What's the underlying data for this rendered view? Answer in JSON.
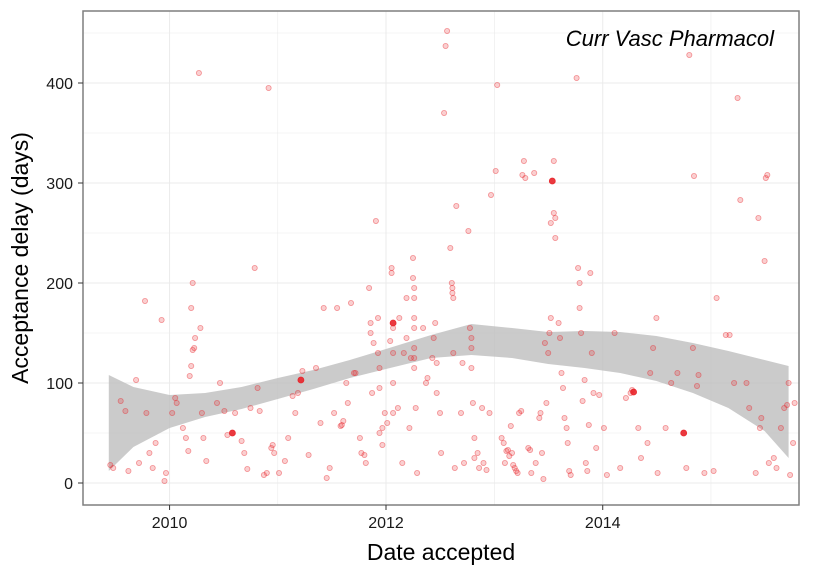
{
  "chart_data": {
    "type": "scatter",
    "title": "",
    "annotation": "Curr Vasc Pharmacol",
    "xlabel": "Date accepted",
    "ylabel": "Acceptance delay (days)",
    "x_ticks": [
      {
        "label": "2010",
        "value": "2010-01-01"
      },
      {
        "label": "2012",
        "value": "2012-01-01"
      },
      {
        "label": "2014",
        "value": "2014-01-01"
      }
    ],
    "y_ticks": [
      0,
      100,
      200,
      300,
      400
    ],
    "xlim": [
      "2009-03-15",
      "2015-10-25"
    ],
    "ylim": [
      -22,
      472
    ],
    "grid": true,
    "legend": "none",
    "colors": {
      "points": "#e8242a",
      "band": "#bdbdbd",
      "grid": "#ebebeb",
      "border": "#7f7f7f"
    },
    "smooth_band": [
      {
        "x": "2009-06-10",
        "lower": 12,
        "upper": 108
      },
      {
        "x": "2009-09-01",
        "lower": 36,
        "upper": 96
      },
      {
        "x": "2010-01-01",
        "lower": 55,
        "upper": 88
      },
      {
        "x": "2010-05-01",
        "lower": 66,
        "upper": 90
      },
      {
        "x": "2010-09-01",
        "lower": 74,
        "upper": 96
      },
      {
        "x": "2011-01-01",
        "lower": 84,
        "upper": 105
      },
      {
        "x": "2011-05-01",
        "lower": 94,
        "upper": 113
      },
      {
        "x": "2011-09-01",
        "lower": 105,
        "upper": 123
      },
      {
        "x": "2012-01-01",
        "lower": 114,
        "upper": 134
      },
      {
        "x": "2012-06-01",
        "lower": 125,
        "upper": 148
      },
      {
        "x": "2012-10-15",
        "lower": 128,
        "upper": 159
      },
      {
        "x": "2013-03-01",
        "lower": 125,
        "upper": 155
      },
      {
        "x": "2013-07-01",
        "lower": 119,
        "upper": 151
      },
      {
        "x": "2013-11-01",
        "lower": 115,
        "upper": 152
      },
      {
        "x": "2014-03-01",
        "lower": 110,
        "upper": 151
      },
      {
        "x": "2014-07-01",
        "lower": 102,
        "upper": 147
      },
      {
        "x": "2014-11-01",
        "lower": 90,
        "upper": 140
      },
      {
        "x": "2015-03-01",
        "lower": 75,
        "upper": 132
      },
      {
        "x": "2015-07-01",
        "lower": 52,
        "upper": 123
      },
      {
        "x": "2015-09-20",
        "lower": 25,
        "upper": 117
      }
    ],
    "points": [
      {
        "x": "2009-06-15",
        "y": 18
      },
      {
        "x": "2009-06-25",
        "y": 15
      },
      {
        "x": "2009-07-20",
        "y": 82
      },
      {
        "x": "2009-08-05",
        "y": 72
      },
      {
        "x": "2009-08-15",
        "y": 12
      },
      {
        "x": "2009-09-10",
        "y": 103
      },
      {
        "x": "2009-09-20",
        "y": 20
      },
      {
        "x": "2009-10-10",
        "y": 182
      },
      {
        "x": "2009-10-15",
        "y": 70
      },
      {
        "x": "2009-10-25",
        "y": 30
      },
      {
        "x": "2009-11-05",
        "y": 15
      },
      {
        "x": "2009-11-15",
        "y": 40
      },
      {
        "x": "2009-12-05",
        "y": 163
      },
      {
        "x": "2009-12-15",
        "y": 2
      },
      {
        "x": "2009-12-20",
        "y": 10
      },
      {
        "x": "2010-01-10",
        "y": 70
      },
      {
        "x": "2010-01-20",
        "y": 85
      },
      {
        "x": "2010-01-25",
        "y": 80
      },
      {
        "x": "2010-02-15",
        "y": 55
      },
      {
        "x": "2010-02-25",
        "y": 45
      },
      {
        "x": "2010-03-05",
        "y": 32
      },
      {
        "x": "2010-03-10",
        "y": 107
      },
      {
        "x": "2010-03-15",
        "y": 117
      },
      {
        "x": "2010-03-20",
        "y": 133
      },
      {
        "x": "2010-03-25",
        "y": 135
      },
      {
        "x": "2010-03-28",
        "y": 145
      },
      {
        "x": "2010-03-15",
        "y": 175
      },
      {
        "x": "2010-03-20",
        "y": 200
      },
      {
        "x": "2010-04-10",
        "y": 410
      },
      {
        "x": "2010-04-15",
        "y": 155
      },
      {
        "x": "2010-04-20",
        "y": 70
      },
      {
        "x": "2010-04-25",
        "y": 45
      },
      {
        "x": "2010-05-05",
        "y": 22
      },
      {
        "x": "2010-06-10",
        "y": 80
      },
      {
        "x": "2010-06-20",
        "y": 100
      },
      {
        "x": "2010-07-05",
        "y": 72
      },
      {
        "x": "2010-07-15",
        "y": 48
      },
      {
        "x": "2010-08-01",
        "y": 50,
        "highlight": true
      },
      {
        "x": "2010-08-10",
        "y": 70
      },
      {
        "x": "2010-09-01",
        "y": 42
      },
      {
        "x": "2010-09-10",
        "y": 30
      },
      {
        "x": "2010-09-20",
        "y": 14
      },
      {
        "x": "2010-10-01",
        "y": 75
      },
      {
        "x": "2010-10-15",
        "y": 215
      },
      {
        "x": "2010-10-25",
        "y": 95
      },
      {
        "x": "2010-11-01",
        "y": 72
      },
      {
        "x": "2010-11-15",
        "y": 8
      },
      {
        "x": "2010-11-25",
        "y": 10
      },
      {
        "x": "2010-12-01",
        "y": 395
      },
      {
        "x": "2010-12-10",
        "y": 35
      },
      {
        "x": "2010-12-15",
        "y": 38
      },
      {
        "x": "2010-12-20",
        "y": 30
      },
      {
        "x": "2011-01-05",
        "y": 10
      },
      {
        "x": "2011-01-25",
        "y": 22
      },
      {
        "x": "2011-02-05",
        "y": 45
      },
      {
        "x": "2011-02-20",
        "y": 87
      },
      {
        "x": "2011-03-01",
        "y": 70
      },
      {
        "x": "2011-03-10",
        "y": 90
      },
      {
        "x": "2011-03-20",
        "y": 103,
        "highlight": true
      },
      {
        "x": "2011-03-25",
        "y": 112
      },
      {
        "x": "2011-04-15",
        "y": 28
      },
      {
        "x": "2011-05-10",
        "y": 115
      },
      {
        "x": "2011-05-25",
        "y": 60
      },
      {
        "x": "2011-06-05",
        "y": 175
      },
      {
        "x": "2011-06-15",
        "y": 5
      },
      {
        "x": "2011-06-25",
        "y": 15
      },
      {
        "x": "2011-07-10",
        "y": 70
      },
      {
        "x": "2011-07-20",
        "y": 175
      },
      {
        "x": "2011-08-01",
        "y": 57
      },
      {
        "x": "2011-08-05",
        "y": 58
      },
      {
        "x": "2011-08-10",
        "y": 62
      },
      {
        "x": "2011-08-20",
        "y": 100
      },
      {
        "x": "2011-08-25",
        "y": 80
      },
      {
        "x": "2011-09-05",
        "y": 180
      },
      {
        "x": "2011-09-15",
        "y": 110
      },
      {
        "x": "2011-09-20",
        "y": 110
      },
      {
        "x": "2011-10-05",
        "y": 45
      },
      {
        "x": "2011-10-10",
        "y": 30
      },
      {
        "x": "2011-10-20",
        "y": 28
      },
      {
        "x": "2011-10-25",
        "y": 20
      },
      {
        "x": "2011-11-05",
        "y": 195
      },
      {
        "x": "2011-11-10",
        "y": 160
      },
      {
        "x": "2011-11-10",
        "y": 150
      },
      {
        "x": "2011-11-15",
        "y": 90
      },
      {
        "x": "2011-11-20",
        "y": 140
      },
      {
        "x": "2011-11-28",
        "y": 262
      },
      {
        "x": "2011-12-05",
        "y": 165
      },
      {
        "x": "2011-12-05",
        "y": 130
      },
      {
        "x": "2011-12-10",
        "y": 115
      },
      {
        "x": "2011-12-10",
        "y": 95
      },
      {
        "x": "2011-12-10",
        "y": 50
      },
      {
        "x": "2011-12-20",
        "y": 55
      },
      {
        "x": "2011-12-20",
        "y": 38
      },
      {
        "x": "2011-12-28",
        "y": 70
      },
      {
        "x": "2012-01-05",
        "y": 60
      },
      {
        "x": "2012-01-15",
        "y": 142
      },
      {
        "x": "2012-01-20",
        "y": 215
      },
      {
        "x": "2012-01-20",
        "y": 210
      },
      {
        "x": "2012-01-25",
        "y": 160,
        "highlight": true
      },
      {
        "x": "2012-01-25",
        "y": 155
      },
      {
        "x": "2012-01-25",
        "y": 130
      },
      {
        "x": "2012-01-25",
        "y": 100
      },
      {
        "x": "2012-01-25",
        "y": 70
      },
      {
        "x": "2012-02-10",
        "y": 75
      },
      {
        "x": "2012-02-15",
        "y": 165
      },
      {
        "x": "2012-02-25",
        "y": 20
      },
      {
        "x": "2012-03-01",
        "y": 130
      },
      {
        "x": "2012-03-10",
        "y": 185
      },
      {
        "x": "2012-03-10",
        "y": 145
      },
      {
        "x": "2012-03-20",
        "y": 55
      },
      {
        "x": "2012-03-25",
        "y": 125
      },
      {
        "x": "2012-04-01",
        "y": 225
      },
      {
        "x": "2012-04-01",
        "y": 205
      },
      {
        "x": "2012-04-05",
        "y": 195
      },
      {
        "x": "2012-04-05",
        "y": 185
      },
      {
        "x": "2012-04-05",
        "y": 165
      },
      {
        "x": "2012-04-05",
        "y": 155
      },
      {
        "x": "2012-04-05",
        "y": 135
      },
      {
        "x": "2012-04-05",
        "y": 125
      },
      {
        "x": "2012-04-05",
        "y": 115
      },
      {
        "x": "2012-04-10",
        "y": 75
      },
      {
        "x": "2012-04-15",
        "y": 10
      },
      {
        "x": "2012-05-05",
        "y": 155
      },
      {
        "x": "2012-05-15",
        "y": 100
      },
      {
        "x": "2012-05-20",
        "y": 105
      },
      {
        "x": "2012-06-05",
        "y": 125
      },
      {
        "x": "2012-06-10",
        "y": 145
      },
      {
        "x": "2012-06-15",
        "y": 160
      },
      {
        "x": "2012-06-20",
        "y": 120
      },
      {
        "x": "2012-06-20",
        "y": 90
      },
      {
        "x": "2012-07-01",
        "y": 70
      },
      {
        "x": "2012-07-05",
        "y": 30
      },
      {
        "x": "2012-07-15",
        "y": 370
      },
      {
        "x": "2012-07-20",
        "y": 437
      },
      {
        "x": "2012-07-25",
        "y": 452
      },
      {
        "x": "2012-08-05",
        "y": 235
      },
      {
        "x": "2012-08-10",
        "y": 200
      },
      {
        "x": "2012-08-12",
        "y": 195
      },
      {
        "x": "2012-08-12",
        "y": 190
      },
      {
        "x": "2012-08-15",
        "y": 185
      },
      {
        "x": "2012-08-15",
        "y": 130
      },
      {
        "x": "2012-08-20",
        "y": 15
      },
      {
        "x": "2012-08-25",
        "y": 277
      },
      {
        "x": "2012-09-10",
        "y": 70
      },
      {
        "x": "2012-09-15",
        "y": 120
      },
      {
        "x": "2012-09-20",
        "y": 20
      },
      {
        "x": "2012-10-05",
        "y": 252
      },
      {
        "x": "2012-10-10",
        "y": 155
      },
      {
        "x": "2012-10-15",
        "y": 145
      },
      {
        "x": "2012-10-15",
        "y": 135
      },
      {
        "x": "2012-10-15",
        "y": 115
      },
      {
        "x": "2012-10-20",
        "y": 80
      },
      {
        "x": "2012-10-25",
        "y": 45
      },
      {
        "x": "2012-10-25",
        "y": 25
      },
      {
        "x": "2012-11-05",
        "y": 30
      },
      {
        "x": "2012-11-10",
        "y": 15
      },
      {
        "x": "2012-11-20",
        "y": 75
      },
      {
        "x": "2012-11-25",
        "y": 20
      },
      {
        "x": "2012-12-05",
        "y": 13
      },
      {
        "x": "2012-12-15",
        "y": 70
      },
      {
        "x": "2012-12-20",
        "y": 288
      },
      {
        "x": "2013-01-05",
        "y": 312
      },
      {
        "x": "2013-01-10",
        "y": 398
      },
      {
        "x": "2013-01-25",
        "y": 45
      },
      {
        "x": "2013-02-01",
        "y": 40
      },
      {
        "x": "2013-02-05",
        "y": 20
      },
      {
        "x": "2013-02-10",
        "y": 32
      },
      {
        "x": "2013-02-15",
        "y": 33
      },
      {
        "x": "2013-02-20",
        "y": 27
      },
      {
        "x": "2013-02-25",
        "y": 57
      },
      {
        "x": "2013-03-01",
        "y": 30
      },
      {
        "x": "2013-03-05",
        "y": 18
      },
      {
        "x": "2013-03-10",
        "y": 15
      },
      {
        "x": "2013-03-15",
        "y": 12
      },
      {
        "x": "2013-03-20",
        "y": 10
      },
      {
        "x": "2013-03-25",
        "y": 70
      },
      {
        "x": "2013-04-01",
        "y": 72
      },
      {
        "x": "2013-04-05",
        "y": 308
      },
      {
        "x": "2013-04-10",
        "y": 322
      },
      {
        "x": "2013-04-15",
        "y": 305
      },
      {
        "x": "2013-04-25",
        "y": 35
      },
      {
        "x": "2013-05-01",
        "y": 33
      },
      {
        "x": "2013-05-05",
        "y": 10
      },
      {
        "x": "2013-05-15",
        "y": 310
      },
      {
        "x": "2013-05-20",
        "y": 20
      },
      {
        "x": "2013-06-01",
        "y": 65
      },
      {
        "x": "2013-06-05",
        "y": 70
      },
      {
        "x": "2013-06-10",
        "y": 30
      },
      {
        "x": "2013-06-15",
        "y": 4
      },
      {
        "x": "2013-06-20",
        "y": 140
      },
      {
        "x": "2013-06-25",
        "y": 80
      },
      {
        "x": "2013-07-01",
        "y": 130
      },
      {
        "x": "2013-07-05",
        "y": 150
      },
      {
        "x": "2013-07-10",
        "y": 165
      },
      {
        "x": "2013-07-10",
        "y": 260
      },
      {
        "x": "2013-07-15",
        "y": 302,
        "highlight": true
      },
      {
        "x": "2013-07-20",
        "y": 322
      },
      {
        "x": "2013-07-20",
        "y": 270
      },
      {
        "x": "2013-07-25",
        "y": 245
      },
      {
        "x": "2013-07-25",
        "y": 265
      },
      {
        "x": "2013-08-05",
        "y": 160
      },
      {
        "x": "2013-08-10",
        "y": 145
      },
      {
        "x": "2013-08-15",
        "y": 110
      },
      {
        "x": "2013-08-20",
        "y": 95
      },
      {
        "x": "2013-08-25",
        "y": 65
      },
      {
        "x": "2013-09-01",
        "y": 55
      },
      {
        "x": "2013-09-05",
        "y": 40
      },
      {
        "x": "2013-09-10",
        "y": 12
      },
      {
        "x": "2013-09-15",
        "y": 8
      },
      {
        "x": "2013-10-05",
        "y": 405
      },
      {
        "x": "2013-10-10",
        "y": 215
      },
      {
        "x": "2013-10-15",
        "y": 200
      },
      {
        "x": "2013-10-15",
        "y": 175
      },
      {
        "x": "2013-10-20",
        "y": 150
      },
      {
        "x": "2013-10-25",
        "y": 82
      },
      {
        "x": "2013-11-01",
        "y": 103
      },
      {
        "x": "2013-11-05",
        "y": 20
      },
      {
        "x": "2013-11-10",
        "y": 12
      },
      {
        "x": "2013-11-15",
        "y": 58
      },
      {
        "x": "2013-11-20",
        "y": 210
      },
      {
        "x": "2013-11-25",
        "y": 130
      },
      {
        "x": "2013-12-01",
        "y": 90
      },
      {
        "x": "2013-12-10",
        "y": 35
      },
      {
        "x": "2013-12-20",
        "y": 88
      },
      {
        "x": "2014-01-05",
        "y": 55
      },
      {
        "x": "2014-01-15",
        "y": 8
      },
      {
        "x": "2014-02-10",
        "y": 150
      },
      {
        "x": "2014-03-01",
        "y": 15
      },
      {
        "x": "2014-03-20",
        "y": 85
      },
      {
        "x": "2014-04-05",
        "y": 90
      },
      {
        "x": "2014-04-10",
        "y": 93
      },
      {
        "x": "2014-04-15",
        "y": 91,
        "highlight": true
      },
      {
        "x": "2014-05-01",
        "y": 55
      },
      {
        "x": "2014-05-10",
        "y": 25
      },
      {
        "x": "2014-06-01",
        "y": 40
      },
      {
        "x": "2014-06-10",
        "y": 110
      },
      {
        "x": "2014-06-20",
        "y": 135
      },
      {
        "x": "2014-07-01",
        "y": 165
      },
      {
        "x": "2014-07-05",
        "y": 10
      },
      {
        "x": "2014-08-01",
        "y": 55
      },
      {
        "x": "2014-08-20",
        "y": 100
      },
      {
        "x": "2014-09-10",
        "y": 110
      },
      {
        "x": "2014-10-01",
        "y": 50,
        "highlight": true
      },
      {
        "x": "2014-10-10",
        "y": 15
      },
      {
        "x": "2014-10-20",
        "y": 428
      },
      {
        "x": "2014-11-01",
        "y": 135
      },
      {
        "x": "2014-11-05",
        "y": 307
      },
      {
        "x": "2014-11-15",
        "y": 97
      },
      {
        "x": "2014-11-20",
        "y": 108
      },
      {
        "x": "2014-12-10",
        "y": 10
      },
      {
        "x": "2015-01-10",
        "y": 12
      },
      {
        "x": "2015-01-20",
        "y": 185
      },
      {
        "x": "2015-02-20",
        "y": 148
      },
      {
        "x": "2015-03-05",
        "y": 148
      },
      {
        "x": "2015-03-20",
        "y": 100
      },
      {
        "x": "2015-04-01",
        "y": 385
      },
      {
        "x": "2015-04-10",
        "y": 283
      },
      {
        "x": "2015-05-01",
        "y": 100
      },
      {
        "x": "2015-05-10",
        "y": 75
      },
      {
        "x": "2015-06-01",
        "y": 10
      },
      {
        "x": "2015-06-10",
        "y": 265
      },
      {
        "x": "2015-06-15",
        "y": 55
      },
      {
        "x": "2015-06-20",
        "y": 65
      },
      {
        "x": "2015-07-01",
        "y": 222
      },
      {
        "x": "2015-07-05",
        "y": 305
      },
      {
        "x": "2015-07-10",
        "y": 308
      },
      {
        "x": "2015-07-15",
        "y": 20
      },
      {
        "x": "2015-08-01",
        "y": 25
      },
      {
        "x": "2015-08-10",
        "y": 15
      },
      {
        "x": "2015-08-25",
        "y": 55
      },
      {
        "x": "2015-09-05",
        "y": 75
      },
      {
        "x": "2015-09-15",
        "y": 78
      },
      {
        "x": "2015-09-20",
        "y": 100
      },
      {
        "x": "2015-09-25",
        "y": 8
      },
      {
        "x": "2015-10-05",
        "y": 40
      },
      {
        "x": "2015-10-10",
        "y": 80
      }
    ]
  }
}
